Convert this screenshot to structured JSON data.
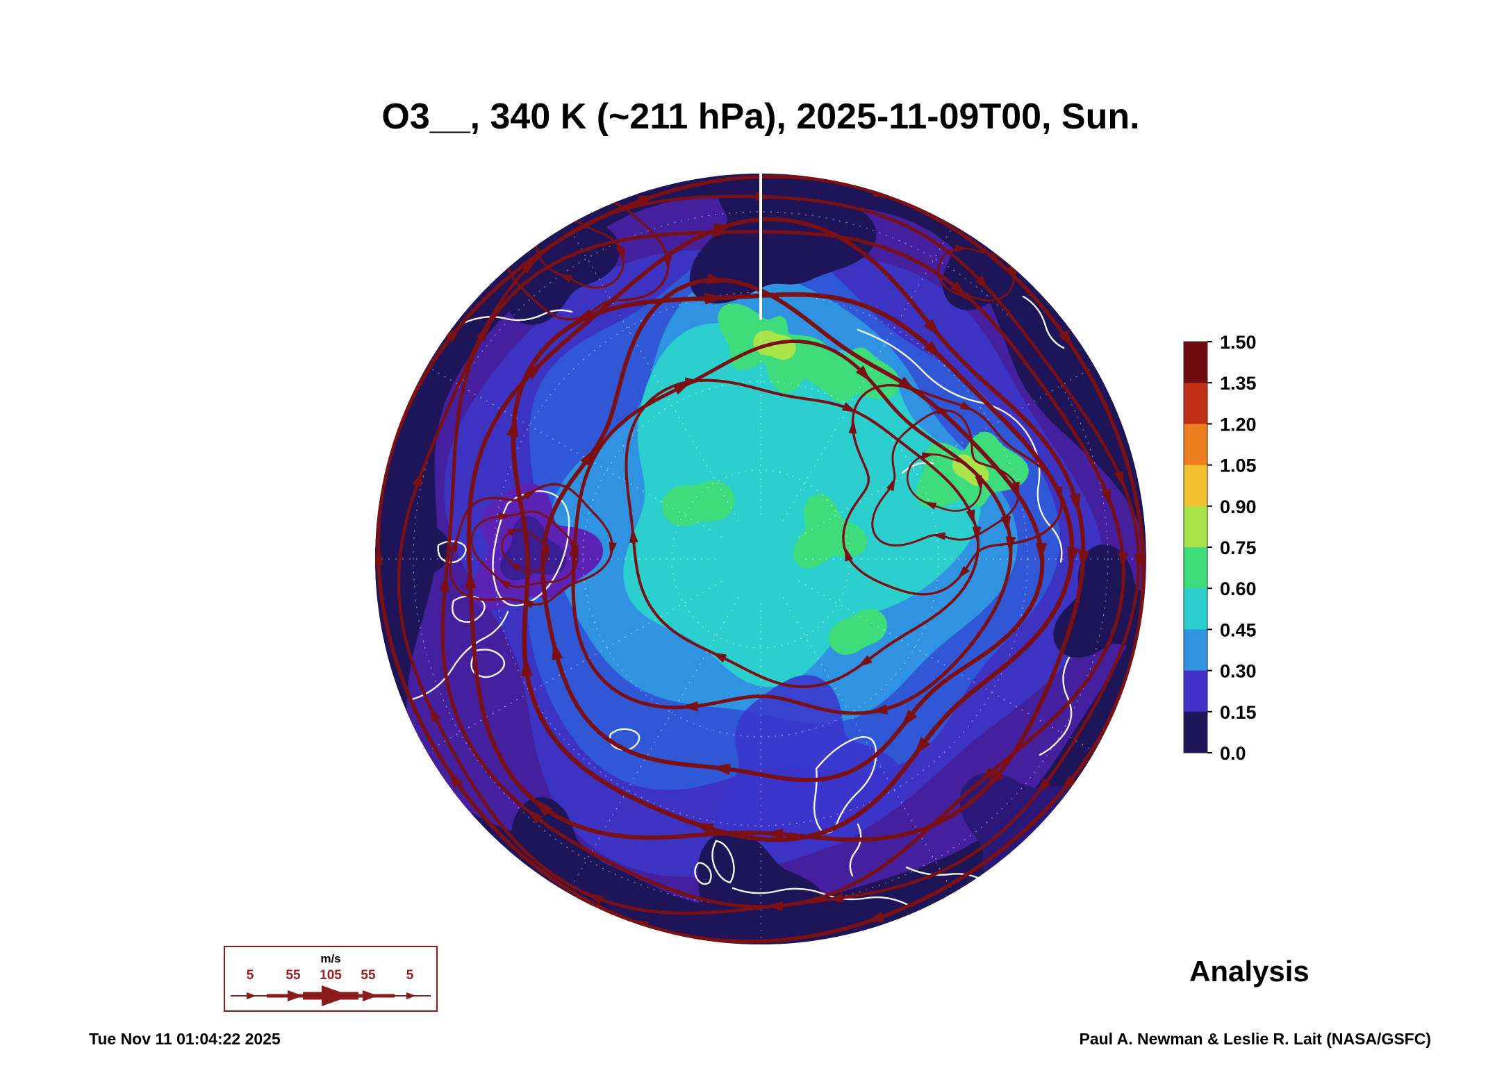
{
  "title": "O3__, 340 K (~211 hPa), 2025-11-09T00, Sun.",
  "analysis_label": "Analysis",
  "footer": {
    "timestamp": "Tue Nov 11 01:04:22 2025",
    "credit": "Paul A. Newman & Leslie R. Lait (NASA/GSFC)"
  },
  "colorbar": {
    "labels": [
      "1.50",
      "1.35",
      "1.20",
      "1.05",
      "0.90",
      "0.75",
      "0.60",
      "0.45",
      "0.30",
      "0.15",
      "0.0"
    ],
    "colors_top_to_bottom": [
      "#6f0a10",
      "#c02f15",
      "#ef7e20",
      "#f2c12f",
      "#a8e44a",
      "#3fdc7c",
      "#2bcfcd",
      "#2f93e2",
      "#4430c8",
      "#1d1557"
    ],
    "min": 0.0,
    "max": 1.5,
    "step": 0.15
  },
  "wind_legend": {
    "units": "m/s",
    "speeds": [
      "5",
      "55",
      "105",
      "55",
      "5"
    ]
  },
  "colors": {
    "streamline": "#7a1014",
    "coastline": "#ffffff",
    "legend_accent": "#8b1a1a",
    "background": "#ffffff"
  },
  "chart_data": {
    "type": "heatmap",
    "title": "O3__, 340 K (~211 hPa), 2025-11-09T00, Sun.",
    "field": "O3 (ozone mixing ratio)",
    "surface": "340 K isentropic surface (~211 hPa)",
    "valid_time": "2025-11-09T00",
    "day_of_week": "Sun.",
    "projection": "Northern Hemisphere polar stereographic",
    "colorbar": {
      "min": 0.0,
      "max": 1.5,
      "interval": 0.15,
      "tick_labels": [
        "1.50",
        "1.35",
        "1.20",
        "1.05",
        "0.90",
        "0.75",
        "0.60",
        "0.45",
        "0.30",
        "0.15",
        "0.0"
      ]
    },
    "overlays": [
      "horizontal wind streamlines (5-105 m/s)",
      "coastlines",
      "latitude/longitude graticule"
    ],
    "pattern_summary": "High ozone (0.45-0.90, cyan/green) covers the polar cap; low ozone (0.0-0.30, dark navy/purple) rings the subtropical rim; a purple trough with closed streamline loops sits near Greenland and a second closed circulation lies over Siberia; dark-red jet-stream streamlines encircle the pole.",
    "product": "Analysis",
    "generated": "Tue Nov 11 01:04:22 2025",
    "credit": "Paul A. Newman & Leslie R. Lait (NASA/GSFC)"
  }
}
